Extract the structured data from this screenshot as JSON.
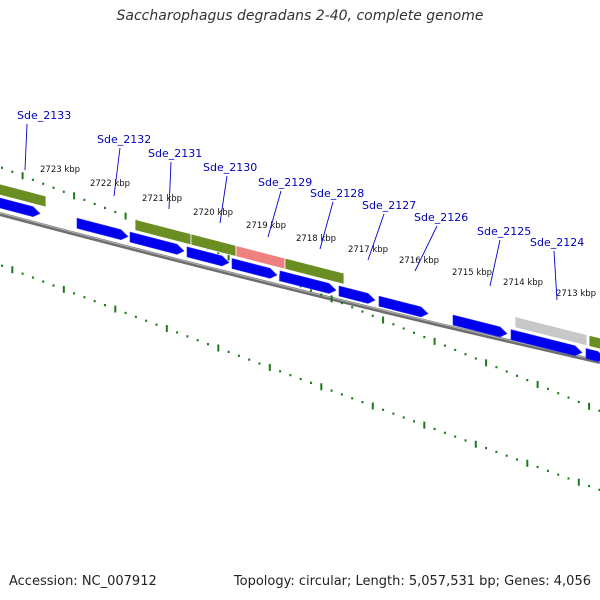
{
  "title": "Saccharophagus degradans 2-40, complete genome",
  "footer": {
    "accession": "Accession: NC_007912",
    "summary": "Topology: circular; Length: 5,057,531 bp; Genes: 4,056"
  },
  "colors": {
    "forward_gene": "#0000ee",
    "backbone": "#777777",
    "feature_olive": "#6b8e23",
    "feature_pink": "#ef8080",
    "feature_grey": "#c8c8c8",
    "ticks": "#1a7a1a",
    "label": "#0000bb"
  },
  "scale_ticks_kbp": [
    "2723 kbp",
    "2722 kbp",
    "2721 kbp",
    "2720 kbp",
    "2719 kbp",
    "2718 kbp",
    "2717 kbp",
    "2716 kbp",
    "2715 kbp",
    "2714 kbp",
    "2713 kbp"
  ],
  "gene_labels": [
    "Sde_2133",
    "Sde_2132",
    "Sde_2131",
    "Sde_2130",
    "Sde_2129",
    "Sde_2128",
    "Sde_2127",
    "Sde_2126",
    "Sde_2125",
    "Sde_2124"
  ]
}
